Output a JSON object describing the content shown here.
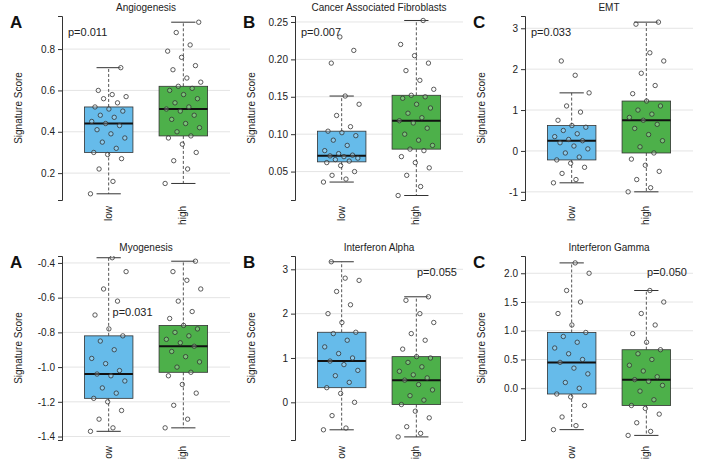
{
  "chart_data": [
    {
      "type": "box",
      "panel": "A",
      "title": "Angiogenesis",
      "annotation": "p=0.011",
      "ylabel": "Signature Score",
      "categories": [
        "low",
        "high"
      ],
      "colors": [
        "#66bbea",
        "#4db04a"
      ],
      "grid": true,
      "ylim": [
        0.07,
        0.96
      ],
      "yticks": [
        0.2,
        0.4,
        0.6,
        0.8
      ],
      "boxes": [
        {
          "min": 0.1,
          "q1": 0.3,
          "median": 0.44,
          "q3": 0.52,
          "max": 0.71,
          "points": [
            0.1,
            0.16,
            0.22,
            0.27,
            0.29,
            0.3,
            0.32,
            0.35,
            0.37,
            0.39,
            0.41,
            0.43,
            0.44,
            0.45,
            0.47,
            0.48,
            0.5,
            0.51,
            0.52,
            0.54,
            0.56,
            0.57,
            0.58,
            0.6,
            0.71
          ]
        },
        {
          "min": 0.15,
          "q1": 0.38,
          "median": 0.51,
          "q3": 0.62,
          "max": 0.93,
          "points": [
            0.15,
            0.22,
            0.26,
            0.3,
            0.34,
            0.37,
            0.38,
            0.4,
            0.42,
            0.44,
            0.46,
            0.48,
            0.5,
            0.51,
            0.52,
            0.54,
            0.56,
            0.58,
            0.6,
            0.61,
            0.62,
            0.64,
            0.66,
            0.7,
            0.72,
            0.76,
            0.79,
            0.82,
            0.88,
            0.93
          ]
        }
      ]
    },
    {
      "type": "box",
      "panel": "B",
      "title": "Cancer Associated Fibroblasts",
      "annotation": "p=0.007",
      "ylabel": "Signature Score",
      "categories": [
        "low",
        "high"
      ],
      "colors": [
        "#66bbea",
        "#4db04a"
      ],
      "grid": true,
      "ylim": [
        0.012,
        0.258
      ],
      "yticks": [
        0.05,
        {
          "value": 0.1,
          "label": "0.10"
        },
        0.15,
        {
          "value": 0.2,
          "label": "0.20"
        },
        0.25
      ],
      "boxes": [
        {
          "min": 0.036,
          "q1": 0.063,
          "median": 0.071,
          "q3": 0.104,
          "max": 0.151,
          "points": [
            0.036,
            0.04,
            0.045,
            0.05,
            0.058,
            0.062,
            0.064,
            0.066,
            0.068,
            0.07,
            0.071,
            0.072,
            0.074,
            0.078,
            0.085,
            0.092,
            0.098,
            0.102,
            0.104,
            0.11,
            0.125,
            0.14,
            0.151,
            0.195,
            0.212,
            0.23
          ]
        },
        {
          "min": 0.018,
          "q1": 0.08,
          "median": 0.118,
          "q3": 0.152,
          "max": 0.252,
          "points": [
            0.018,
            0.03,
            0.045,
            0.055,
            0.062,
            0.07,
            0.078,
            0.08,
            0.085,
            0.092,
            0.1,
            0.108,
            0.115,
            0.118,
            0.122,
            0.128,
            0.135,
            0.14,
            0.148,
            0.15,
            0.152,
            0.16,
            0.172,
            0.185,
            0.195,
            0.205,
            0.22,
            0.252
          ]
        }
      ]
    },
    {
      "type": "box",
      "panel": "C",
      "title": "EMT",
      "annotation": "p=0.033",
      "ylabel": "Signature Score",
      "categories": [
        "low",
        "high"
      ],
      "colors": [
        "#66bbea",
        "#4db04a"
      ],
      "grid": true,
      "ylim": [
        -1.2,
        3.3
      ],
      "yticks": [
        -1,
        0,
        1,
        2,
        3
      ],
      "boxes": [
        {
          "min": -0.78,
          "q1": -0.22,
          "median": 0.25,
          "q3": 0.62,
          "max": 1.42,
          "points": [
            -0.78,
            -0.7,
            -0.55,
            -0.4,
            -0.3,
            -0.22,
            -0.15,
            -0.05,
            0.05,
            0.12,
            0.2,
            0.25,
            0.28,
            0.35,
            0.42,
            0.5,
            0.58,
            0.62,
            0.75,
            0.95,
            1.1,
            1.42,
            1.85,
            2.2
          ]
        },
        {
          "min": -1.0,
          "q1": -0.05,
          "median": 0.75,
          "q3": 1.22,
          "max": 3.15,
          "points": [
            -1.0,
            -0.9,
            -0.7,
            -0.5,
            -0.35,
            -0.2,
            -0.05,
            0.1,
            0.25,
            0.4,
            0.55,
            0.65,
            0.75,
            0.82,
            0.9,
            1.0,
            1.1,
            1.22,
            1.4,
            1.6,
            1.9,
            2.2,
            2.4,
            3.1,
            3.15
          ]
        }
      ]
    },
    {
      "type": "box",
      "panel": "A",
      "title": "Myogenesis",
      "annotation": "p=0.031",
      "ylabel": "Signature Score",
      "categories": [
        "low",
        "high"
      ],
      "colors": [
        "#66bbea",
        "#4db04a"
      ],
      "grid": true,
      "ylim": [
        -1.42,
        -0.36
      ],
      "yticks": [
        -1.4,
        -1.2,
        {
          "value": -1,
          "label": "-1.0"
        },
        -0.8,
        -0.6,
        -0.4
      ],
      "boxes": [
        {
          "min": -1.37,
          "q1": -1.18,
          "median": -1.04,
          "q3": -0.82,
          "max": -0.37,
          "points": [
            -1.37,
            -1.35,
            -1.3,
            -1.25,
            -1.2,
            -1.18,
            -1.15,
            -1.12,
            -1.08,
            -1.05,
            -1.04,
            -1.02,
            -0.98,
            -0.95,
            -0.9,
            -0.85,
            -0.82,
            -0.78,
            -0.7,
            -0.62,
            -0.55,
            -0.45,
            -0.37
          ]
        },
        {
          "min": -1.35,
          "q1": -1.03,
          "median": -0.88,
          "q3": -0.76,
          "max": -0.39,
          "points": [
            -1.35,
            -1.3,
            -1.22,
            -1.15,
            -1.1,
            -1.05,
            -1.03,
            -1.0,
            -0.97,
            -0.94,
            -0.91,
            -0.88,
            -0.86,
            -0.84,
            -0.82,
            -0.8,
            -0.78,
            -0.76,
            -0.72,
            -0.68,
            -0.62,
            -0.55,
            -0.5,
            -0.45,
            -0.39
          ]
        }
      ]
    },
    {
      "type": "box",
      "panel": "B",
      "title": "Interferon Alpha",
      "annotation": "p=0.055",
      "ylabel": "Signature Score",
      "categories": [
        "low",
        "high"
      ],
      "colors": [
        "#66bbea",
        "#4db04a"
      ],
      "grid": true,
      "ylim": [
        -0.85,
        3.3
      ],
      "yticks": [
        0,
        1,
        2,
        3
      ],
      "boxes": [
        {
          "min": -0.62,
          "q1": 0.33,
          "median": 0.93,
          "q3": 1.58,
          "max": 3.17,
          "points": [
            -0.62,
            -0.58,
            -0.3,
            0.0,
            0.2,
            0.33,
            0.45,
            0.6,
            0.72,
            0.85,
            0.93,
            1.0,
            1.1,
            1.25,
            1.4,
            1.55,
            1.58,
            1.8,
            2.0,
            2.2,
            2.5,
            2.75,
            2.8,
            3.17
          ]
        },
        {
          "min": -0.78,
          "q1": -0.05,
          "median": 0.5,
          "q3": 1.03,
          "max": 2.38,
          "points": [
            -0.78,
            -0.7,
            -0.55,
            -0.35,
            -0.2,
            -0.05,
            0.05,
            0.15,
            0.28,
            0.4,
            0.5,
            0.55,
            0.62,
            0.7,
            0.8,
            0.9,
            1.0,
            1.03,
            1.2,
            1.4,
            1.55,
            1.8,
            2.0,
            2.3,
            2.38
          ]
        }
      ]
    },
    {
      "type": "box",
      "panel": "C",
      "title": "Interferon Gamma",
      "annotation": "p=0.050",
      "ylabel": "Signature Score",
      "categories": [
        "low",
        "high"
      ],
      "colors": [
        "#66bbea",
        "#4db04a"
      ],
      "grid": true,
      "ylim": [
        -0.9,
        2.3
      ],
      "yticks": [
        {
          "value": 0,
          "label": "0.0"
        },
        0.5,
        {
          "value": 1,
          "label": "1.0"
        },
        1.5,
        {
          "value": 2,
          "label": "2.0"
        }
      ],
      "boxes": [
        {
          "min": -0.72,
          "q1": -0.1,
          "median": 0.45,
          "q3": 0.97,
          "max": 2.18,
          "points": [
            -0.72,
            -0.65,
            -0.5,
            -0.3,
            -0.15,
            -0.1,
            0.0,
            0.1,
            0.25,
            0.35,
            0.45,
            0.5,
            0.6,
            0.7,
            0.8,
            0.9,
            0.97,
            1.1,
            1.3,
            1.5,
            1.7,
            2.0,
            2.18
          ]
        },
        {
          "min": -0.82,
          "q1": -0.3,
          "median": 0.15,
          "q3": 0.67,
          "max": 1.7,
          "points": [
            -0.82,
            -0.75,
            -0.6,
            -0.45,
            -0.35,
            -0.3,
            -0.2,
            -0.05,
            0.05,
            0.12,
            0.15,
            0.2,
            0.3,
            0.4,
            0.5,
            0.6,
            0.67,
            0.8,
            0.95,
            1.1,
            1.3,
            1.5,
            1.7
          ]
        }
      ]
    }
  ]
}
